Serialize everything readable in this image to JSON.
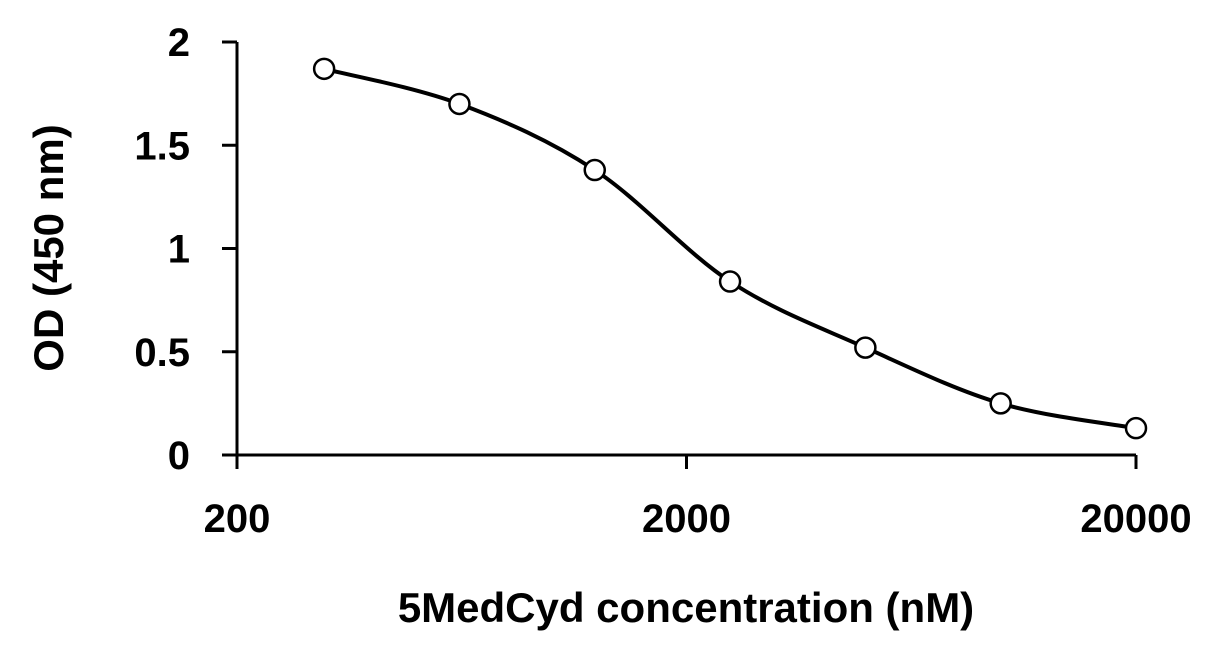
{
  "chart_data": {
    "type": "line",
    "xlabel": "5MedCyd concentration (nM)",
    "ylabel": "OD (450 nm)",
    "x_scale": "log",
    "xlim": [
      200,
      20000
    ],
    "ylim": [
      0,
      2
    ],
    "x_ticks": [
      200,
      2000,
      20000
    ],
    "x_tick_labels": [
      "200",
      "2000",
      "20000"
    ],
    "y_ticks": [
      0,
      0.5,
      1,
      1.5,
      2
    ],
    "y_tick_labels": [
      "0",
      "0.5",
      "1",
      "1.5",
      "2"
    ],
    "grid": false,
    "legend": "none",
    "series": [
      {
        "marker": "open-circle",
        "line": "smooth",
        "color": "#000000",
        "points": [
          {
            "x": 312.5,
            "y": 1.87
          },
          {
            "x": 625,
            "y": 1.7
          },
          {
            "x": 1250,
            "y": 1.38
          },
          {
            "x": 2500,
            "y": 0.84
          },
          {
            "x": 5000,
            "y": 0.52
          },
          {
            "x": 10000,
            "y": 0.25
          },
          {
            "x": 20000,
            "y": 0.13
          }
        ]
      }
    ]
  }
}
